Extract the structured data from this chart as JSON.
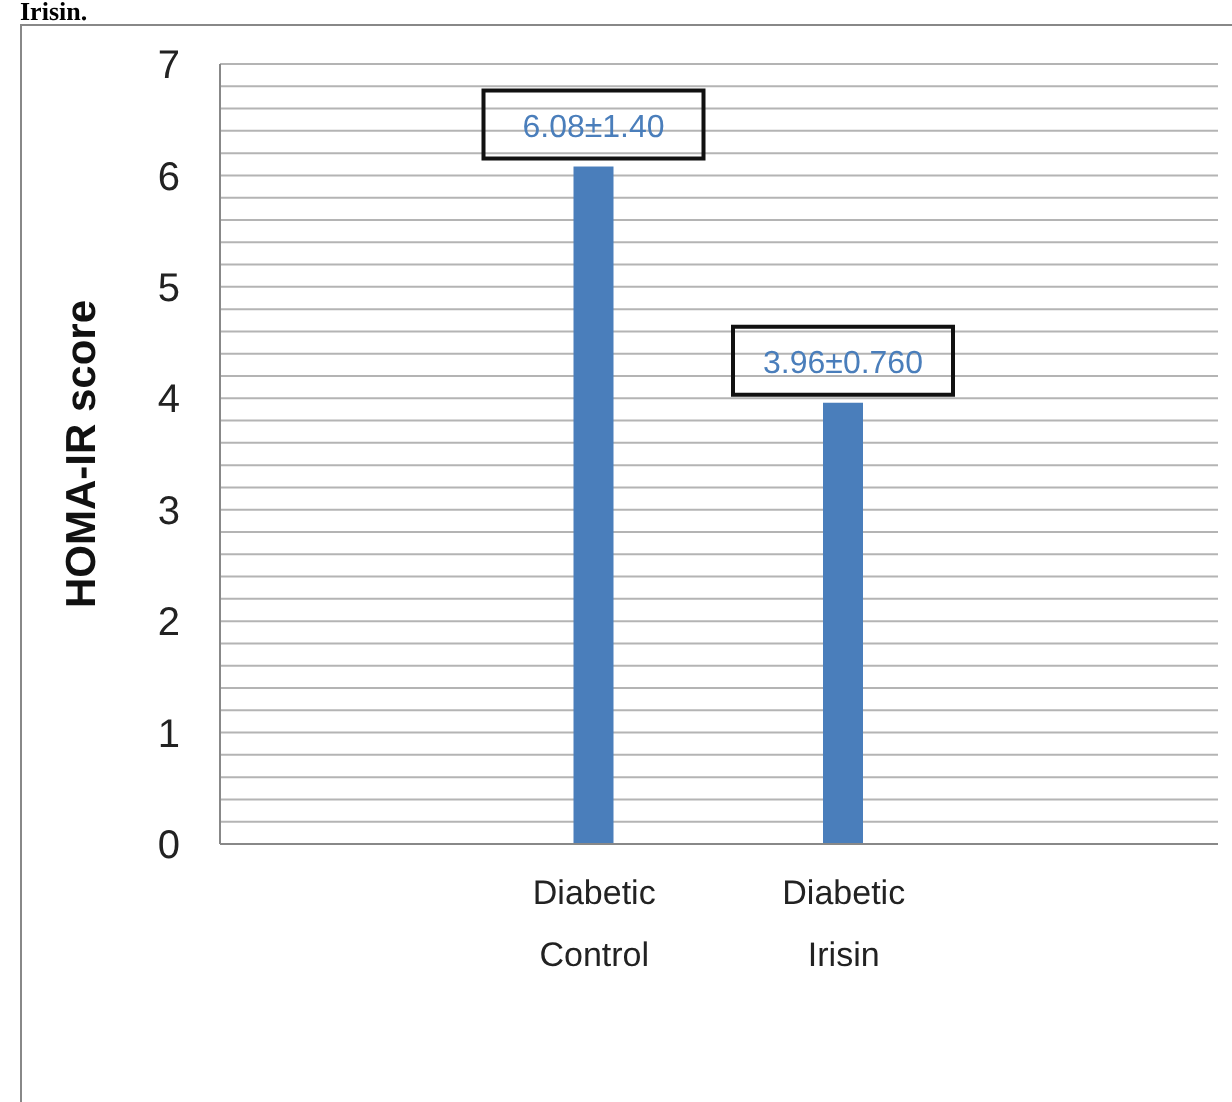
{
  "chart_data": {
    "type": "bar",
    "title": "Irisin.",
    "ylabel": "HOMA-IR score",
    "categories": [
      null,
      "Diabetic Control",
      "Diabetic Irisin",
      null
    ],
    "values": [
      null,
      6.08,
      3.96,
      null
    ],
    "color": "#4a7ebb",
    "value_labels": [
      null,
      "6.08±1.40",
      "3.96±0.760",
      null
    ],
    "ylim": [
      0,
      7
    ],
    "yticks": [
      0,
      {
        "value": 0.2,
        "label": null
      },
      {
        "value": 0.4,
        "label": null
      },
      {
        "value": 0.6,
        "label": null
      },
      {
        "value": 0.8,
        "label": null
      },
      1,
      {
        "value": 1.2,
        "label": null
      },
      {
        "value": 1.4,
        "label": null
      },
      {
        "value": 1.6,
        "label": null
      },
      {
        "value": 1.8,
        "label": null
      },
      2,
      {
        "value": 2.2,
        "label": null
      },
      {
        "value": 2.4,
        "label": null
      },
      {
        "value": 2.6,
        "label": null
      },
      {
        "value": 2.8,
        "label": null
      },
      3,
      {
        "value": 3.2,
        "label": null
      },
      {
        "value": 3.4,
        "label": null
      },
      {
        "value": 3.6,
        "label": null
      },
      {
        "value": 3.8,
        "label": null
      },
      4,
      {
        "value": 4.2,
        "label": null
      },
      {
        "value": 4.4,
        "label": null
      },
      {
        "value": 4.6,
        "label": null
      },
      {
        "value": 4.8,
        "label": null
      },
      5,
      {
        "value": 5.2,
        "label": null
      },
      {
        "value": 5.4,
        "label": null
      },
      {
        "value": 5.6,
        "label": null
      },
      {
        "value": 5.8,
        "label": null
      },
      6,
      {
        "value": 6.2,
        "label": null
      },
      {
        "value": 6.4,
        "label": null
      },
      {
        "value": 6.6,
        "label": null
      },
      {
        "value": 6.8,
        "label": null
      },
      7
    ],
    "grid": "y"
  }
}
